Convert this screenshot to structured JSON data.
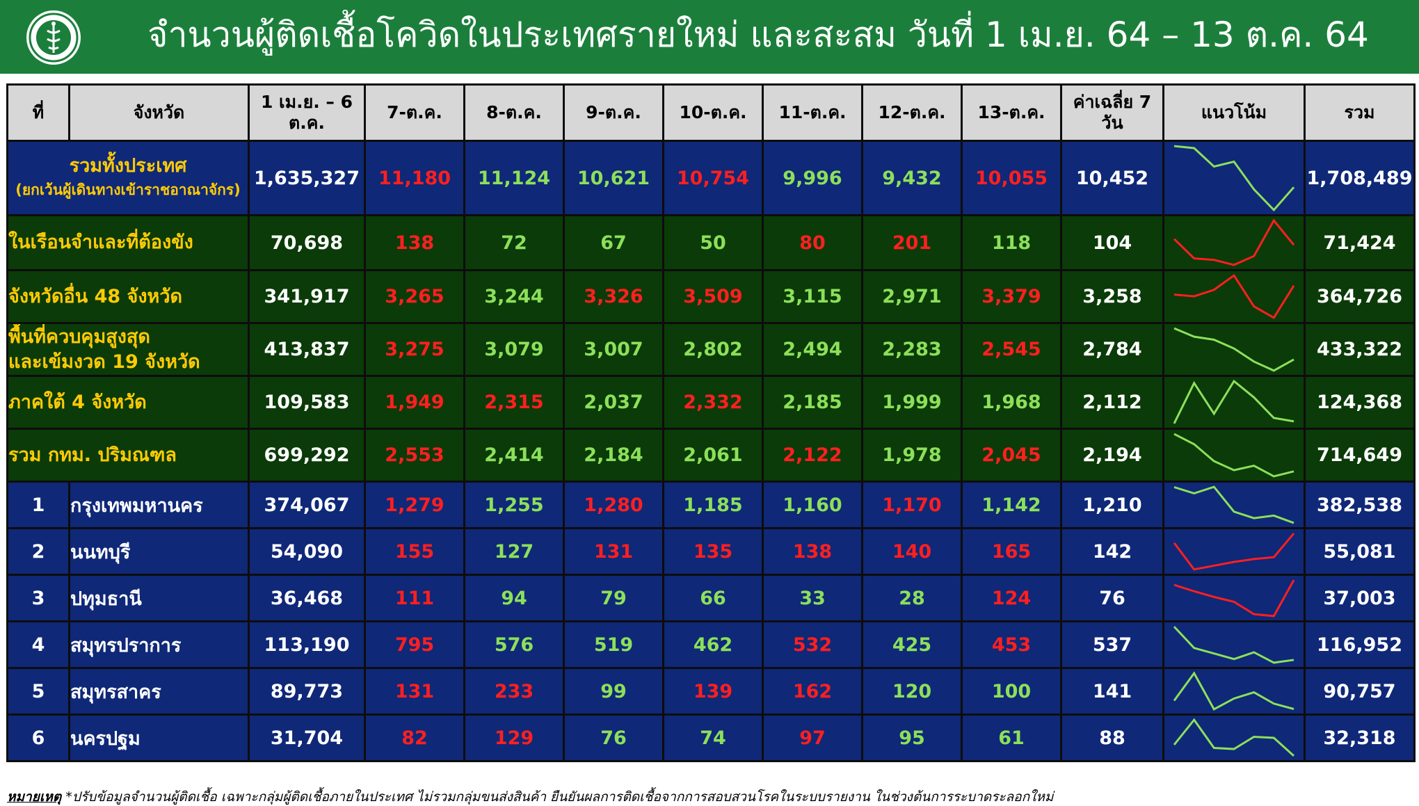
{
  "header": {
    "title": "จำนวนผู้ติดเชื้อโควิดในประเทศรายใหม่ และสะสม วันที่ 1 เม.ย. 64 – 13 ต.ค. 64",
    "logo_text": "MINISTRY OF PUBLIC HEALTH"
  },
  "colors": {
    "header_bg": "#1b7f3b",
    "total_bg": "#0f2878",
    "group_bg": "#0b3b08",
    "increase": "#ff1f1f",
    "decrease": "#8ce05a",
    "label": "#ffcb05"
  },
  "chart_data": {
    "type": "table",
    "columns": [
      "ที่",
      "จังหวัด",
      "1 เม.ย. – 6 ต.ค.",
      "7-ต.ค.",
      "8-ต.ค.",
      "9-ต.ค.",
      "10-ต.ค.",
      "11-ต.ค.",
      "12-ต.ค.",
      "13-ต.ค.",
      "ค่าเฉลี่ย 7 วัน",
      "แนวโน้ม",
      "รวม"
    ],
    "rows": [
      {
        "no": "",
        "name": "รวมทั้งประเทศ",
        "sub": "(ยกเว้นผู้เดินทางเข้าราชอาณาจักร)",
        "cumulative": "1,635,327",
        "daily": [
          "11,180",
          "11,124",
          "10,621",
          "10,754",
          "9,996",
          "9,432",
          "10,055"
        ],
        "daily_values": [
          11180,
          11124,
          10621,
          10754,
          9996,
          9432,
          10055
        ],
        "trend_dir": [
          "up",
          "down",
          "down",
          "up",
          "down",
          "down",
          "up"
        ],
        "avg7": "10,452",
        "total": "1,708,489",
        "trend_color": "#8ce05a"
      },
      {
        "no": "",
        "name": "ในเรือนจำและที่ต้องขัง",
        "cumulative": "70,698",
        "daily": [
          "138",
          "72",
          "67",
          "50",
          "80",
          "201",
          "118"
        ],
        "daily_values": [
          138,
          72,
          67,
          50,
          80,
          201,
          118
        ],
        "trend_dir": [
          "up",
          "down",
          "down",
          "down",
          "up",
          "up",
          "down"
        ],
        "avg7": "104",
        "total": "71,424",
        "trend_color": "#ff1f1f"
      },
      {
        "no": "",
        "name": "จังหวัดอื่น 48 จังหวัด",
        "cumulative": "341,917",
        "daily": [
          "3,265",
          "3,244",
          "3,326",
          "3,509",
          "3,115",
          "2,971",
          "3,379"
        ],
        "daily_values": [
          3265,
          3244,
          3326,
          3509,
          3115,
          2971,
          3379
        ],
        "trend_dir": [
          "up",
          "down",
          "up",
          "up",
          "down",
          "down",
          "up"
        ],
        "avg7": "3,258",
        "total": "364,726",
        "trend_color": "#ff1f1f"
      },
      {
        "no": "",
        "name": "พื้นที่ควบคุมสูงสุด\nและเข้มงวด 19 จังหวัด",
        "cumulative": "413,837",
        "daily": [
          "3,275",
          "3,079",
          "3,007",
          "2,802",
          "2,494",
          "2,283",
          "2,545"
        ],
        "daily_values": [
          3275,
          3079,
          3007,
          2802,
          2494,
          2283,
          2545
        ],
        "trend_dir": [
          "up",
          "down",
          "down",
          "down",
          "down",
          "down",
          "up"
        ],
        "avg7": "2,784",
        "total": "433,322",
        "trend_color": "#8ce05a"
      },
      {
        "no": "",
        "name": "ภาคใต้ 4 จังหวัด",
        "cumulative": "109,583",
        "daily": [
          "1,949",
          "2,315",
          "2,037",
          "2,332",
          "2,185",
          "1,999",
          "1,968"
        ],
        "daily_values": [
          1949,
          2315,
          2037,
          2332,
          2185,
          1999,
          1968
        ],
        "trend_dir": [
          "up",
          "up",
          "down",
          "up",
          "down",
          "down",
          "down"
        ],
        "avg7": "2,112",
        "total": "124,368",
        "trend_color": "#8ce05a"
      },
      {
        "no": "",
        "name": "รวม กทม. ปริมณฑล",
        "cumulative": "699,292",
        "daily": [
          "2,553",
          "2,414",
          "2,184",
          "2,061",
          "2,122",
          "1,978",
          "2,045"
        ],
        "daily_values": [
          2553,
          2414,
          2184,
          2061,
          2122,
          1978,
          2045
        ],
        "trend_dir": [
          "up",
          "down",
          "down",
          "down",
          "up",
          "down",
          "up"
        ],
        "avg7": "2,194",
        "total": "714,649",
        "trend_color": "#8ce05a"
      },
      {
        "no": "1",
        "name": "กรุงเทพมหานคร",
        "cumulative": "374,067",
        "daily": [
          "1,279",
          "1,255",
          "1,280",
          "1,185",
          "1,160",
          "1,170",
          "1,142"
        ],
        "daily_values": [
          1279,
          1255,
          1280,
          1185,
          1160,
          1170,
          1142
        ],
        "trend_dir": [
          "up",
          "down",
          "up",
          "down",
          "down",
          "up",
          "down"
        ],
        "avg7": "1,210",
        "total": "382,538",
        "trend_color": "#8ce05a"
      },
      {
        "no": "2",
        "name": "นนทบุรี",
        "cumulative": "54,090",
        "daily": [
          "155",
          "127",
          "131",
          "135",
          "138",
          "140",
          "165"
        ],
        "daily_values": [
          155,
          127,
          131,
          135,
          138,
          140,
          165
        ],
        "trend_dir": [
          "up",
          "down",
          "up",
          "up",
          "up",
          "up",
          "up"
        ],
        "avg7": "142",
        "total": "55,081",
        "trend_color": "#ff1f1f"
      },
      {
        "no": "3",
        "name": "ปทุมธานี",
        "cumulative": "36,468",
        "daily": [
          "111",
          "94",
          "79",
          "66",
          "33",
          "28",
          "124"
        ],
        "daily_values": [
          111,
          94,
          79,
          66,
          33,
          28,
          124
        ],
        "trend_dir": [
          "up",
          "down",
          "down",
          "down",
          "down",
          "down",
          "up"
        ],
        "avg7": "76",
        "total": "37,003",
        "trend_color": "#ff1f1f"
      },
      {
        "no": "4",
        "name": "สมุทรปราการ",
        "cumulative": "113,190",
        "daily": [
          "795",
          "576",
          "519",
          "462",
          "532",
          "425",
          "453"
        ],
        "daily_values": [
          795,
          576,
          519,
          462,
          532,
          425,
          453
        ],
        "trend_dir": [
          "up",
          "down",
          "down",
          "down",
          "up",
          "down",
          "up"
        ],
        "avg7": "537",
        "total": "116,952",
        "trend_color": "#8ce05a"
      },
      {
        "no": "5",
        "name": "สมุทรสาคร",
        "cumulative": "89,773",
        "daily": [
          "131",
          "233",
          "99",
          "139",
          "162",
          "120",
          "100"
        ],
        "daily_values": [
          131,
          233,
          99,
          139,
          162,
          120,
          100
        ],
        "trend_dir": [
          "up",
          "up",
          "down",
          "up",
          "up",
          "down",
          "down"
        ],
        "avg7": "141",
        "total": "90,757",
        "trend_color": "#8ce05a"
      },
      {
        "no": "6",
        "name": "นครปฐม",
        "cumulative": "31,704",
        "daily": [
          "82",
          "129",
          "76",
          "74",
          "97",
          "95",
          "61"
        ],
        "daily_values": [
          82,
          129,
          76,
          74,
          97,
          95,
          61
        ],
        "trend_dir": [
          "up",
          "up",
          "down",
          "down",
          "up",
          "down",
          "down"
        ],
        "avg7": "88",
        "total": "32,318",
        "trend_color": "#8ce05a"
      }
    ]
  },
  "footnote": {
    "label": "หมายเหตุ",
    "text": "*ปรับข้อมูลจำนวนผู้ติดเชื้อ เฉพาะกลุ่มผู้ติดเชื้อภายในประเทศ ไม่รวมกลุ่มขนส่งสินค้า ยืนยันผลการติดเชื้อจากการสอบสวนโรคในระบบรายงาน ในช่วงต้นการระบาดระลอกใหม่"
  }
}
